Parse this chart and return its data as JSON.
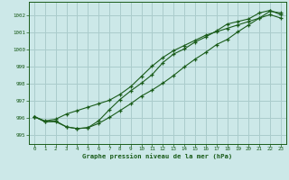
{
  "title": "Graphe pression niveau de la mer (hPa)",
  "bg_color": "#cce8e8",
  "grid_color": "#aacccc",
  "line_color": "#1a5c1a",
  "xlim": [
    -0.5,
    23.5
  ],
  "ylim": [
    994.5,
    1002.8
  ],
  "xticks": [
    0,
    1,
    2,
    3,
    4,
    5,
    6,
    7,
    8,
    9,
    10,
    11,
    12,
    13,
    14,
    15,
    16,
    17,
    18,
    19,
    20,
    21,
    22,
    23
  ],
  "yticks": [
    995,
    996,
    997,
    998,
    999,
    1000,
    1001,
    1002
  ],
  "line1": [
    996.1,
    995.8,
    995.8,
    995.5,
    995.4,
    995.45,
    995.7,
    996.05,
    996.45,
    996.85,
    997.3,
    997.65,
    998.05,
    998.5,
    999.0,
    999.45,
    999.85,
    1000.3,
    1000.6,
    1001.05,
    1001.45,
    1001.85,
    1002.05,
    1001.85
  ],
  "line2": [
    996.1,
    995.8,
    995.85,
    995.5,
    995.4,
    995.45,
    995.85,
    996.5,
    997.1,
    997.6,
    998.05,
    998.55,
    999.25,
    999.75,
    1000.05,
    1000.45,
    1000.75,
    1001.1,
    1001.5,
    1001.65,
    1001.8,
    1002.15,
    1002.3,
    1002.05
  ],
  "line3": [
    996.1,
    995.85,
    995.95,
    996.25,
    996.45,
    996.65,
    996.85,
    997.05,
    997.4,
    997.85,
    998.45,
    999.05,
    999.55,
    999.95,
    1000.25,
    1000.55,
    1000.85,
    1001.05,
    1001.25,
    1001.45,
    1001.65,
    1001.85,
    1002.25,
    1002.15
  ]
}
